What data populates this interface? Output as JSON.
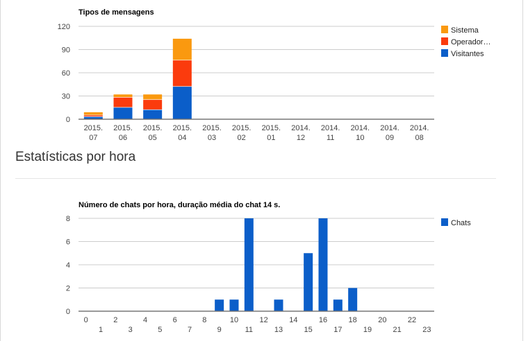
{
  "section": {
    "title": "Estatísticas por hora"
  },
  "chart_data": [
    {
      "type": "bar",
      "stacked": true,
      "title": "Tipos de mensagens",
      "categories": [
        [
          "2015.",
          "07"
        ],
        [
          "2015.",
          "06"
        ],
        [
          "2015.",
          "05"
        ],
        [
          "2015.",
          "04"
        ],
        [
          "2015.",
          "03"
        ],
        [
          "2015.",
          "02"
        ],
        [
          "2015.",
          "01"
        ],
        [
          "2014.",
          "12"
        ],
        [
          "2014.",
          "11"
        ],
        [
          "2014.",
          "10"
        ],
        [
          "2014.",
          "09"
        ],
        [
          "2014.",
          "08"
        ]
      ],
      "series": [
        {
          "name": "Visitantes",
          "color": "#0b5ec9",
          "values": [
            3,
            15,
            12,
            42,
            0,
            0,
            0,
            0,
            0,
            0,
            0,
            0
          ]
        },
        {
          "name": "Operador…",
          "color": "#fb3b0d",
          "values": [
            2,
            13,
            13,
            34,
            0,
            0,
            0,
            0,
            0,
            0,
            0,
            0
          ]
        },
        {
          "name": "Sistema",
          "color": "#fa990f",
          "values": [
            4,
            4,
            7,
            28,
            0,
            0,
            0,
            0,
            0,
            0,
            0,
            0
          ]
        }
      ],
      "legend_order": [
        "Sistema",
        "Operador…",
        "Visitantes"
      ],
      "yticks": [
        "0",
        "30",
        "60",
        "90",
        "120"
      ],
      "ylim": [
        0,
        120
      ],
      "grid": true,
      "legend": "right"
    },
    {
      "type": "bar",
      "title": "Número de chats por hora, duração média do chat 14 s.",
      "categories": [
        "0",
        "1",
        "2",
        "3",
        "4",
        "5",
        "6",
        "7",
        "8",
        "9",
        "10",
        "11",
        "12",
        "13",
        "14",
        "15",
        "16",
        "17",
        "18",
        "19",
        "20",
        "21",
        "22",
        "23"
      ],
      "series": [
        {
          "name": "Chats",
          "color": "#0b5ec9",
          "values": [
            0,
            0,
            0,
            0,
            0,
            0,
            0,
            0,
            0,
            1,
            1,
            8,
            0,
            1,
            0,
            5,
            8,
            1,
            2,
            0,
            0,
            0,
            0,
            0
          ]
        }
      ],
      "yticks": [
        "0",
        "2",
        "4",
        "6",
        "8"
      ],
      "ylim": [
        0,
        8
      ],
      "grid": true,
      "legend": "right"
    }
  ]
}
